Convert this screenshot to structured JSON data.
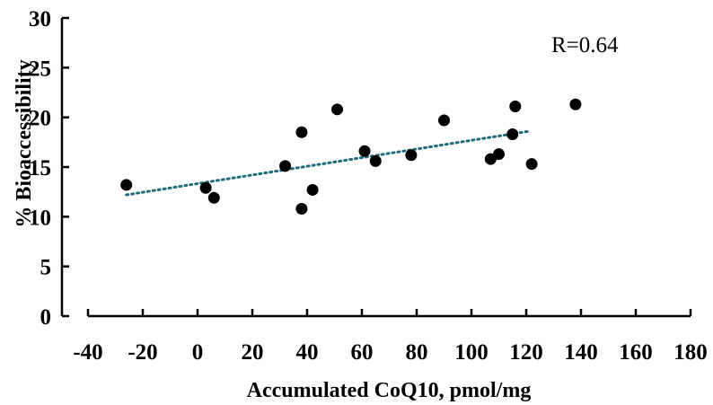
{
  "chart_data": {
    "type": "scatter",
    "xlabel": "Accumulated CoQ10, pmol/mg",
    "ylabel": "% Bioaccessibility",
    "xlim": [
      -40,
      180
    ],
    "ylim": [
      0,
      30
    ],
    "x_ticks": [
      -40,
      -20,
      0,
      20,
      40,
      60,
      80,
      100,
      120,
      140,
      160,
      180
    ],
    "y_ticks": [
      0,
      5,
      10,
      15,
      20,
      25,
      30
    ],
    "annotation": "R=0.64",
    "grid": false,
    "legend": "none",
    "points": [
      {
        "x": -26,
        "y": 13.2
      },
      {
        "x": 3,
        "y": 12.9
      },
      {
        "x": 6,
        "y": 11.9
      },
      {
        "x": 32,
        "y": 15.1
      },
      {
        "x": 38,
        "y": 10.8
      },
      {
        "x": 38,
        "y": 18.5
      },
      {
        "x": 42,
        "y": 12.7
      },
      {
        "x": 51,
        "y": 20.8
      },
      {
        "x": 61,
        "y": 16.6
      },
      {
        "x": 65,
        "y": 15.6
      },
      {
        "x": 78,
        "y": 16.2
      },
      {
        "x": 90,
        "y": 19.7
      },
      {
        "x": 107,
        "y": 15.8
      },
      {
        "x": 110,
        "y": 16.3
      },
      {
        "x": 115,
        "y": 18.3
      },
      {
        "x": 116,
        "y": 21.1
      },
      {
        "x": 122,
        "y": 15.3
      },
      {
        "x": 138,
        "y": 21.3
      }
    ],
    "trendline": {
      "x": [
        -26,
        121
      ],
      "y": [
        12.2,
        18.6
      ],
      "color": "#1f6b78",
      "style": "dotted"
    },
    "colors": {
      "points": "#000000",
      "axes": "#000000"
    }
  }
}
